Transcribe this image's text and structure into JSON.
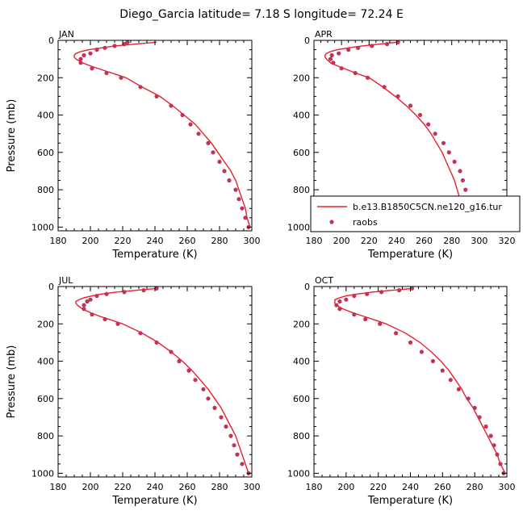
{
  "figure": {
    "title": "Diego_Garcia   latitude=  7.18 S  longitude=  72.24 E"
  },
  "colors": {
    "model_line": "#e8202a",
    "raobs_dots": "#c2335a",
    "axis": "#000000"
  },
  "chart_data": [
    {
      "type": "line",
      "panel_label": "JAN",
      "xlabel": "Temperature (K)",
      "ylabel": "Pressure (mb)",
      "xlim": [
        180,
        300
      ],
      "ylim": [
        1020,
        0
      ],
      "xticks": [
        180,
        200,
        220,
        240,
        260,
        280,
        300
      ],
      "yticks": [
        0,
        200,
        400,
        600,
        800,
        1000
      ],
      "grid": false,
      "series": [
        {
          "name": "b.e13.B1850C5CN.ne120_g16.tur",
          "kind": "line",
          "points": [
            [
              241,
              10
            ],
            [
              228,
              20
            ],
            [
              215,
              30
            ],
            [
              207,
              40
            ],
            [
              199,
              50
            ],
            [
              194,
              60
            ],
            [
              191,
              70
            ],
            [
              190,
              80
            ],
            [
              190,
              90
            ],
            [
              191,
              100
            ],
            [
              195,
              120
            ],
            [
              201,
              140
            ],
            [
              208,
              160
            ],
            [
              215,
              180
            ],
            [
              222,
              200
            ],
            [
              232,
              250
            ],
            [
              243,
              300
            ],
            [
              251,
              350
            ],
            [
              258,
              400
            ],
            [
              265,
              450
            ],
            [
              270,
              500
            ],
            [
              275,
              550
            ],
            [
              279,
              600
            ],
            [
              283,
              650
            ],
            [
              287,
              700
            ],
            [
              290,
              750
            ],
            [
              292,
              800
            ],
            [
              294,
              850
            ],
            [
              296,
              900
            ],
            [
              297,
              950
            ],
            [
              299,
              1000
            ]
          ]
        },
        {
          "name": "raobs",
          "kind": "scatter",
          "points": [
            [
              223,
              10
            ],
            [
              221,
              20
            ],
            [
              215,
              30
            ],
            [
              209,
              40
            ],
            [
              204,
              50
            ],
            [
              200,
              70
            ],
            [
              196,
              80
            ],
            [
              194,
              100
            ],
            [
              194,
              120
            ],
            [
              201,
              150
            ],
            [
              210,
              175
            ],
            [
              219,
              200
            ],
            [
              231,
              250
            ],
            [
              241,
              300
            ],
            [
              250,
              350
            ],
            [
              257,
              400
            ],
            [
              262,
              450
            ],
            [
              267,
              500
            ],
            [
              273,
              550
            ],
            [
              276,
              600
            ],
            [
              280,
              650
            ],
            [
              283,
              700
            ],
            [
              286,
              750
            ],
            [
              290,
              800
            ],
            [
              292,
              850
            ],
            [
              294,
              900
            ],
            [
              296,
              950
            ],
            [
              298,
              1000
            ]
          ]
        }
      ]
    },
    {
      "type": "line",
      "panel_label": "APR",
      "xlabel": "Temperature (K)",
      "ylabel": "",
      "xlim": [
        180,
        320
      ],
      "ylim": [
        1020,
        0
      ],
      "xticks": [
        180,
        200,
        220,
        240,
        260,
        280,
        300,
        320
      ],
      "yticks": [
        0,
        200,
        400,
        600,
        800,
        1000
      ],
      "grid": false,
      "legend_position": "bottom",
      "series": [
        {
          "name": "b.e13.B1850C5CN.ne120_g16.tur",
          "kind": "line",
          "points": [
            [
              241,
              10
            ],
            [
              228,
              20
            ],
            [
              215,
              30
            ],
            [
              205,
              40
            ],
            [
              197,
              50
            ],
            [
              192,
              60
            ],
            [
              189,
              70
            ],
            [
              188,
              80
            ],
            [
              188,
              90
            ],
            [
              189,
              100
            ],
            [
              192,
              120
            ],
            [
              198,
              140
            ],
            [
              205,
              160
            ],
            [
              212,
              180
            ],
            [
              220,
              200
            ],
            [
              230,
              250
            ],
            [
              239,
              300
            ],
            [
              247,
              350
            ],
            [
              254,
              400
            ],
            [
              260,
              450
            ],
            [
              265,
              500
            ],
            [
              269,
              550
            ],
            [
              273,
              600
            ],
            [
              276,
              650
            ],
            [
              279,
              700
            ],
            [
              282,
              750
            ],
            [
              284,
              800
            ],
            [
              286,
              850
            ],
            [
              288,
              900
            ],
            [
              290,
              950
            ],
            [
              292,
              1000
            ]
          ]
        },
        {
          "name": "raobs",
          "kind": "scatter",
          "points": [
            [
              241,
              10
            ],
            [
              233,
              20
            ],
            [
              222,
              30
            ],
            [
              212,
              40
            ],
            [
              205,
              50
            ],
            [
              198,
              70
            ],
            [
              193,
              80
            ],
            [
              192,
              100
            ],
            [
              194,
              120
            ],
            [
              200,
              150
            ],
            [
              210,
              175
            ],
            [
              219,
              200
            ],
            [
              231,
              250
            ],
            [
              241,
              300
            ],
            [
              250,
              350
            ],
            [
              257,
              400
            ],
            [
              263,
              450
            ],
            [
              268,
              500
            ],
            [
              274,
              550
            ],
            [
              278,
              600
            ],
            [
              282,
              650
            ],
            [
              286,
              700
            ],
            [
              288,
              750
            ],
            [
              290,
              800
            ],
            [
              292,
              850
            ],
            [
              295,
              900
            ],
            [
              298,
              950
            ],
            [
              301,
              1000
            ]
          ]
        }
      ]
    },
    {
      "type": "line",
      "panel_label": "JUL",
      "xlabel": "Temperature (K)",
      "ylabel": "Pressure (mb)",
      "xlim": [
        180,
        300
      ],
      "ylim": [
        1020,
        0
      ],
      "xticks": [
        180,
        200,
        220,
        240,
        260,
        280,
        300
      ],
      "yticks": [
        0,
        200,
        400,
        600,
        800,
        1000
      ],
      "grid": false,
      "series": [
        {
          "name": "b.e13.B1850C5CN.ne120_g16.tur",
          "kind": "line",
          "points": [
            [
              242,
              10
            ],
            [
              229,
              20
            ],
            [
              216,
              30
            ],
            [
              207,
              40
            ],
            [
              201,
              50
            ],
            [
              196,
              60
            ],
            [
              193,
              70
            ],
            [
              191,
              80
            ],
            [
              191,
              90
            ],
            [
              192,
              100
            ],
            [
              195,
              120
            ],
            [
              200,
              140
            ],
            [
              206,
              160
            ],
            [
              213,
              180
            ],
            [
              220,
              200
            ],
            [
              232,
              250
            ],
            [
              242,
              300
            ],
            [
              250,
              350
            ],
            [
              257,
              400
            ],
            [
              263,
              450
            ],
            [
              268,
              500
            ],
            [
              273,
              550
            ],
            [
              277,
              600
            ],
            [
              281,
              650
            ],
            [
              284,
              700
            ],
            [
              287,
              750
            ],
            [
              290,
              800
            ],
            [
              292,
              850
            ],
            [
              294,
              900
            ],
            [
              296,
              950
            ],
            [
              298,
              1000
            ]
          ]
        },
        {
          "name": "raobs",
          "kind": "scatter",
          "points": [
            [
              241,
              10
            ],
            [
              233,
              20
            ],
            [
              221,
              30
            ],
            [
              210,
              40
            ],
            [
              204,
              50
            ],
            [
              200,
              70
            ],
            [
              198,
              80
            ],
            [
              196,
              100
            ],
            [
              196,
              120
            ],
            [
              201,
              150
            ],
            [
              209,
              175
            ],
            [
              217,
              200
            ],
            [
              231,
              250
            ],
            [
              241,
              300
            ],
            [
              250,
              350
            ],
            [
              255,
              400
            ],
            [
              261,
              450
            ],
            [
              265,
              500
            ],
            [
              270,
              550
            ],
            [
              273,
              600
            ],
            [
              277,
              650
            ],
            [
              281,
              700
            ],
            [
              284,
              750
            ],
            [
              287,
              800
            ],
            [
              289,
              850
            ],
            [
              291,
              900
            ],
            [
              294,
              950
            ],
            [
              298,
              1000
            ]
          ]
        }
      ]
    },
    {
      "type": "line",
      "panel_label": "OCT",
      "xlabel": "Temperature (K)",
      "ylabel": "",
      "xlim": [
        180,
        300
      ],
      "ylim": [
        1020,
        0
      ],
      "xticks": [
        180,
        200,
        220,
        240,
        260,
        280,
        300
      ],
      "yticks": [
        0,
        200,
        400,
        600,
        800,
        1000
      ],
      "grid": false,
      "series": [
        {
          "name": "b.e13.B1850C5CN.ne120_g16.tur",
          "kind": "line",
          "points": [
            [
              242,
              10
            ],
            [
              229,
              20
            ],
            [
              216,
              30
            ],
            [
              207,
              40
            ],
            [
              200,
              50
            ],
            [
              196,
              60
            ],
            [
              193,
              70
            ],
            [
              193,
              80
            ],
            [
              193,
              90
            ],
            [
              194,
              100
            ],
            [
              198,
              120
            ],
            [
              204,
              140
            ],
            [
              211,
              160
            ],
            [
              218,
              180
            ],
            [
              225,
              200
            ],
            [
              237,
              250
            ],
            [
              246,
              300
            ],
            [
              253,
              350
            ],
            [
              259,
              400
            ],
            [
              264,
              450
            ],
            [
              268,
              500
            ],
            [
              272,
              550
            ],
            [
              275,
              600
            ],
            [
              279,
              650
            ],
            [
              282,
              700
            ],
            [
              285,
              750
            ],
            [
              288,
              800
            ],
            [
              291,
              850
            ],
            [
              294,
              900
            ],
            [
              296,
              950
            ],
            [
              299,
              1000
            ]
          ]
        },
        {
          "name": "raobs",
          "kind": "scatter",
          "points": [
            [
              241,
              10
            ],
            [
              233,
              20
            ],
            [
              222,
              30
            ],
            [
              213,
              40
            ],
            [
              205,
              50
            ],
            [
              200,
              70
            ],
            [
              196,
              80
            ],
            [
              194,
              100
            ],
            [
              196,
              120
            ],
            [
              205,
              150
            ],
            [
              212,
              175
            ],
            [
              221,
              200
            ],
            [
              231,
              250
            ],
            [
              240,
              300
            ],
            [
              247,
              350
            ],
            [
              254,
              400
            ],
            [
              260,
              450
            ],
            [
              265,
              500
            ],
            [
              270,
              550
            ],
            [
              276,
              600
            ],
            [
              280,
              650
            ],
            [
              283,
              700
            ],
            [
              287,
              750
            ],
            [
              290,
              800
            ],
            [
              292,
              850
            ],
            [
              294,
              900
            ],
            [
              296,
              950
            ],
            [
              298,
              1000
            ]
          ]
        }
      ]
    }
  ]
}
